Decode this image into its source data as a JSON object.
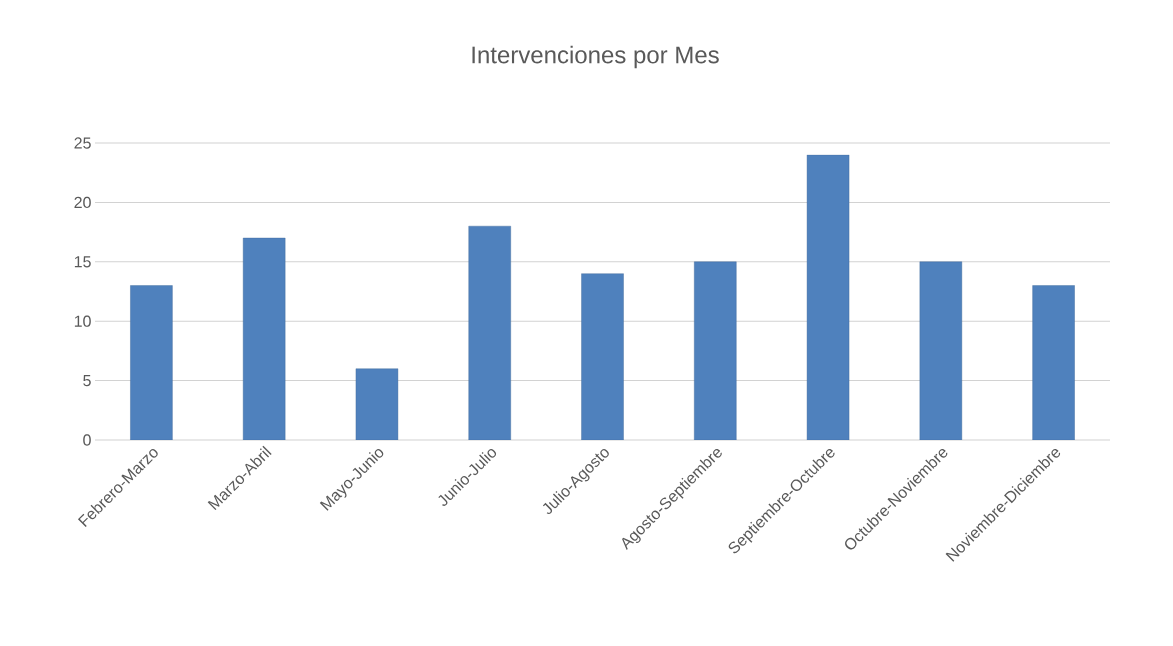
{
  "chart_data": {
    "type": "bar",
    "title": "Intervenciones por Mes",
    "categories": [
      "Febrero-Marzo",
      "Marzo-Abril",
      "Mayo-Junio",
      "Junio-Julio",
      "Julio-Agosto",
      "Agosto-Septiembre",
      "Septiembre-Octubre",
      "Octubre-Noviembre",
      "Noviembre-Diciembre"
    ],
    "values": [
      13,
      17,
      6,
      18,
      14,
      15,
      24,
      15,
      13
    ],
    "color": "#4f81bd",
    "ylim": [
      0,
      25
    ],
    "yticks": [
      0,
      5,
      10,
      15,
      20,
      25
    ],
    "grid": "y"
  }
}
